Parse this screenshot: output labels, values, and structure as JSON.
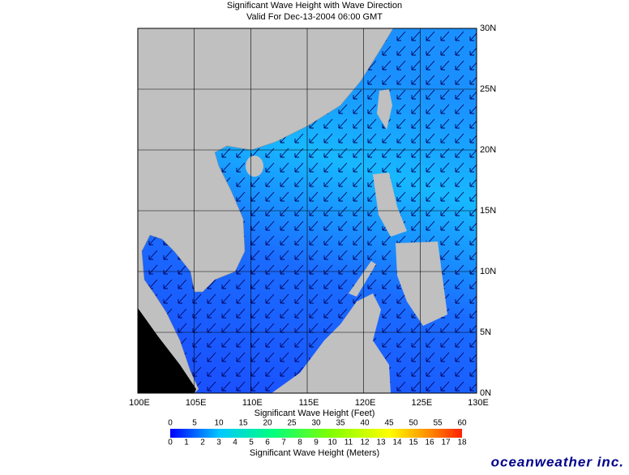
{
  "map": {
    "title": "Significant Wave Height with Wave Direction",
    "subtitle": "Valid For Dec-13-2004 06:00 GMT",
    "lon_ticks": [
      {
        "value": 100,
        "label": "100E"
      },
      {
        "value": 105,
        "label": "105E"
      },
      {
        "value": 110,
        "label": "110E"
      },
      {
        "value": 115,
        "label": "115E"
      },
      {
        "value": 120,
        "label": "120E"
      },
      {
        "value": 125,
        "label": "125E"
      },
      {
        "value": 130,
        "label": "130E"
      }
    ],
    "lat_ticks": [
      {
        "value": 0,
        "label": "0N"
      },
      {
        "value": 5,
        "label": "5N"
      },
      {
        "value": 10,
        "label": "10N"
      },
      {
        "value": 15,
        "label": "15N"
      },
      {
        "value": 20,
        "label": "20N"
      },
      {
        "value": 25,
        "label": "25N"
      },
      {
        "value": 30,
        "label": "30N"
      }
    ],
    "colorbar": {
      "feet_label": "Significant Wave Height (Feet)",
      "meters_label": "Significant Wave Height (Meters)",
      "feet_ticks": [
        0,
        5,
        10,
        15,
        20,
        25,
        30,
        35,
        40,
        45,
        50,
        55,
        60
      ],
      "meter_ticks": [
        0,
        1,
        2,
        3,
        4,
        5,
        6,
        7,
        8,
        9,
        10,
        11,
        12,
        13,
        14,
        15,
        16,
        17,
        18
      ]
    },
    "logo": "oceanweather inc."
  }
}
